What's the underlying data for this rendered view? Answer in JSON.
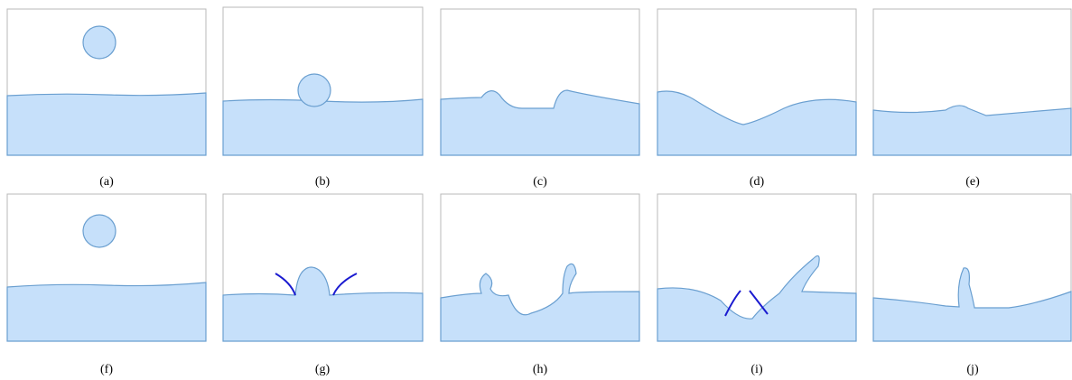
{
  "captions": [
    "(a)",
    "(b)",
    "(c)",
    "(d)",
    "(e)",
    "(f)",
    "(g)",
    "(h)",
    "(i)",
    "(j)"
  ]
}
